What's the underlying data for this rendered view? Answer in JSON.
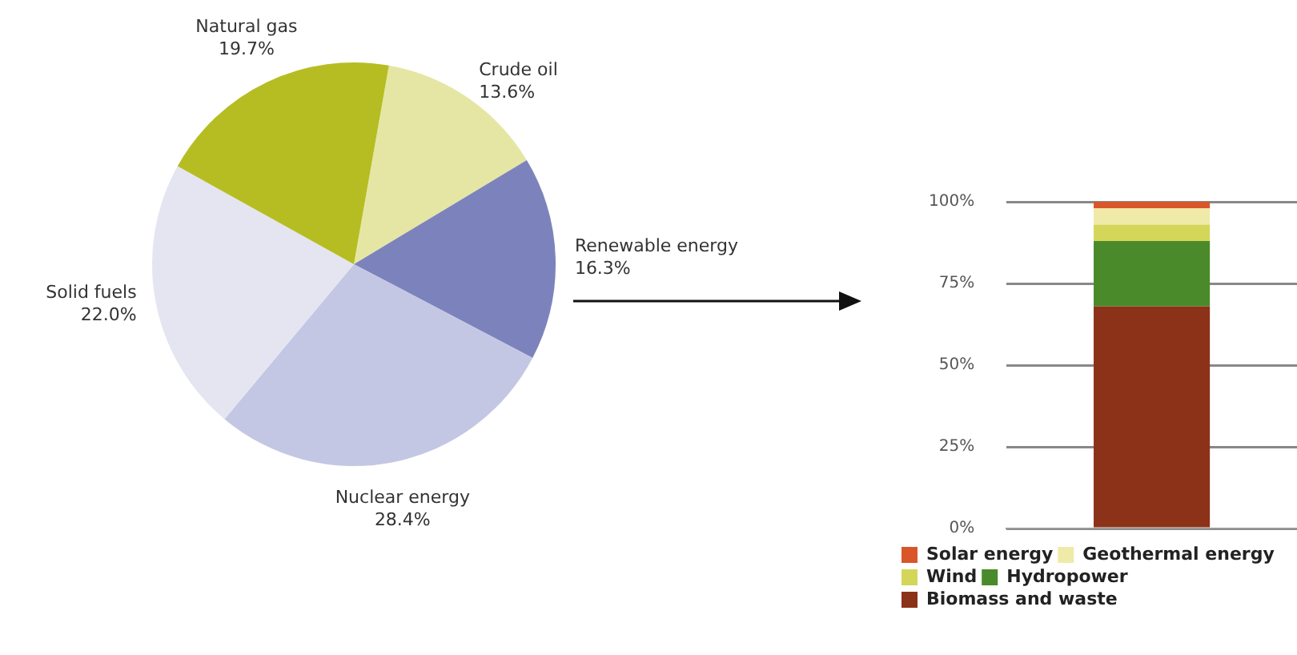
{
  "chart_data": [
    {
      "type": "pie",
      "categories": [
        "Crude oil",
        "Renewable energy",
        "Nuclear energy",
        "Solid fuels",
        "Natural gas"
      ],
      "values": [
        13.6,
        16.3,
        28.4,
        22.0,
        19.7
      ],
      "colors": [
        "#e6e6a4",
        "#7c83bc",
        "#c4c7e3",
        "#e4e5f0",
        "#b6bd22"
      ],
      "value_labels": [
        "13.6%",
        "16.3%",
        "28.4%",
        "22.0%",
        "19.7%"
      ]
    },
    {
      "type": "bar",
      "categories": [
        null
      ],
      "stacked": true,
      "ylim": [
        0,
        100
      ],
      "yticks": [
        {
          "value": 0,
          "label": "0%"
        },
        {
          "value": 25,
          "label": "25%"
        },
        {
          "value": 50,
          "label": "50%"
        },
        {
          "value": 75,
          "label": "75%"
        },
        {
          "value": 100,
          "label": "100%"
        }
      ],
      "grid": "y",
      "legend": "bottom",
      "series": [
        {
          "name": "Biomass and waste",
          "color": "#8b3219",
          "values": [
            68
          ]
        },
        {
          "name": "Hydropower",
          "color": "#4a8a2a",
          "values": [
            20
          ]
        },
        {
          "name": "Wind",
          "color": "#d4d65a",
          "values": [
            5
          ]
        },
        {
          "name": "Geothermal energy",
          "color": "#f0eaa8",
          "values": [
            5
          ]
        },
        {
          "name": "Solar energy",
          "color": "#d9562a",
          "values": [
            2
          ]
        }
      ]
    }
  ]
}
